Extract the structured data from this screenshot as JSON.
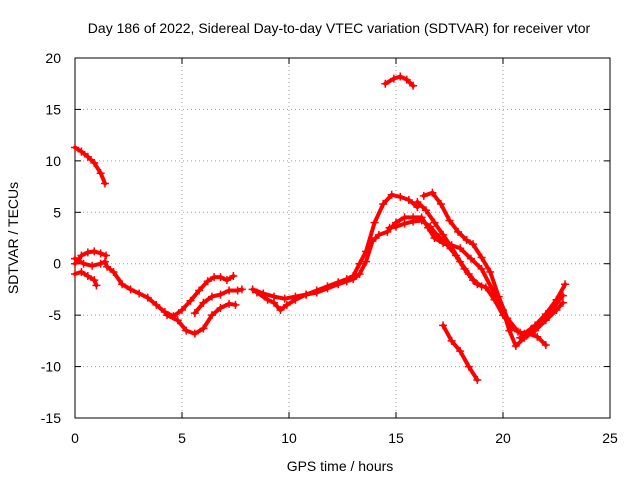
{
  "chart_data": {
    "type": "scatter",
    "title": "Day 186 of 2022, Sidereal Day-to-day VTEC variation (SDTVAR) for receiver vtor",
    "xlabel": "GPS time / hours",
    "ylabel": "SDTVAR / TECUs",
    "xlim": [
      0,
      25
    ],
    "ylim": [
      -15,
      20
    ],
    "xticks": [
      0,
      5,
      10,
      15,
      20,
      25
    ],
    "yticks": [
      -15,
      -10,
      -5,
      0,
      5,
      10,
      15,
      20
    ],
    "xtick_labels": [
      "0",
      "5",
      "10",
      "15",
      "20",
      "25"
    ],
    "ytick_labels": [
      "-15",
      "-10",
      "-5",
      "0",
      "5",
      "10",
      "15",
      "20"
    ],
    "grid": true,
    "marker": "+",
    "color": "#ff0000",
    "series": [
      {
        "name": "arc-a",
        "points": [
          [
            0,
            11.3
          ],
          [
            0.3,
            10.9
          ],
          [
            0.6,
            10.4
          ],
          [
            0.9,
            9.8
          ],
          [
            1.2,
            8.8
          ],
          [
            1.4,
            7.8
          ]
        ]
      },
      {
        "name": "arc-b",
        "points": [
          [
            0,
            0
          ],
          [
            0.3,
            0.8
          ],
          [
            0.6,
            1.1
          ],
          [
            0.9,
            1.2
          ],
          [
            1.2,
            1
          ],
          [
            1.45,
            0.8
          ]
        ]
      },
      {
        "name": "arc-c",
        "points": [
          [
            0,
            -1
          ],
          [
            0.3,
            -0.8
          ],
          [
            0.6,
            -1.2
          ],
          [
            0.9,
            -1.6
          ],
          [
            1.0,
            -2.1
          ]
        ]
      },
      {
        "name": "arc-d",
        "points": [
          [
            0,
            0.5
          ],
          [
            0.4,
            0
          ],
          [
            0.8,
            -0.2
          ],
          [
            1.2,
            0
          ],
          [
            1.4,
            0.2
          ],
          [
            1.5,
            -0.3
          ],
          [
            1.8,
            -0.8
          ],
          [
            2.2,
            -2
          ],
          [
            2.6,
            -2.5
          ],
          [
            3,
            -2.9
          ],
          [
            3.4,
            -3.3
          ],
          [
            3.8,
            -4
          ],
          [
            4.2,
            -4.7
          ],
          [
            4.6,
            -5.1
          ],
          [
            5.0,
            -4.5
          ],
          [
            5.4,
            -3.6
          ],
          [
            5.8,
            -2.6
          ],
          [
            6.2,
            -1.7
          ],
          [
            6.5,
            -1.3
          ],
          [
            6.8,
            -1.3
          ],
          [
            7.1,
            -1.6
          ],
          [
            7.4,
            -1.2
          ]
        ]
      },
      {
        "name": "arc-e",
        "points": [
          [
            4.3,
            -5
          ],
          [
            4.8,
            -5.5
          ],
          [
            5.2,
            -6.5
          ],
          [
            5.6,
            -6.8
          ],
          [
            6.0,
            -6.3
          ],
          [
            6.4,
            -5
          ],
          [
            6.8,
            -4.3
          ],
          [
            7.2,
            -3.9
          ],
          [
            7.5,
            -4
          ]
        ]
      },
      {
        "name": "arc-f",
        "points": [
          [
            5.6,
            -4.8
          ],
          [
            6.0,
            -3.8
          ],
          [
            6.4,
            -3.2
          ],
          [
            6.8,
            -3
          ],
          [
            7.2,
            -2.6
          ],
          [
            7.6,
            -2.6
          ],
          [
            7.8,
            -2.5
          ]
        ]
      },
      {
        "name": "arc-g",
        "points": [
          [
            8.5,
            -2.8
          ],
          [
            9.0,
            -3.5
          ],
          [
            9.3,
            -3.8
          ],
          [
            9.6,
            -4.5
          ],
          [
            9.9,
            -4
          ],
          [
            10.3,
            -3.5
          ],
          [
            10.8,
            -3
          ],
          [
            11.3,
            -2.6
          ],
          [
            11.8,
            -2.2
          ],
          [
            12.3,
            -1.8
          ],
          [
            12.7,
            -1.5
          ],
          [
            13.0,
            -1.2
          ],
          [
            13.3,
            0
          ],
          [
            13.6,
            1.2
          ],
          [
            14.0,
            4
          ],
          [
            14.4,
            5.8
          ],
          [
            14.8,
            6.7
          ],
          [
            15.2,
            6.5
          ],
          [
            15.6,
            6.2
          ],
          [
            16.0,
            5.5
          ]
        ]
      },
      {
        "name": "arc-h",
        "points": [
          [
            8.3,
            -2.5
          ],
          [
            8.8,
            -2.9
          ],
          [
            9.3,
            -3.2
          ],
          [
            9.8,
            -3.4
          ],
          [
            10.3,
            -3.2
          ],
          [
            10.8,
            -3
          ],
          [
            11.3,
            -2.8
          ],
          [
            11.8,
            -2.4
          ],
          [
            12.3,
            -2
          ],
          [
            12.7,
            -1.7
          ],
          [
            13.0,
            -1.5
          ],
          [
            13.3,
            -1
          ],
          [
            13.6,
            0.2
          ],
          [
            13.9,
            2.2
          ],
          [
            14.2,
            2.8
          ],
          [
            14.6,
            3.1
          ],
          [
            15.0,
            4
          ],
          [
            15.4,
            4.5
          ],
          [
            15.8,
            4.5
          ],
          [
            16.2,
            4.5
          ],
          [
            16.5,
            3.5
          ],
          [
            16.8,
            2.5
          ],
          [
            17.2,
            2
          ],
          [
            17.6,
            1.8
          ],
          [
            18.0,
            1.5
          ],
          [
            18.5,
            0.5
          ],
          [
            19.0,
            -0.5
          ],
          [
            19.5,
            -2.5
          ],
          [
            20.0,
            -4.5
          ],
          [
            20.3,
            -6.5
          ],
          [
            20.6,
            -8
          ],
          [
            21.0,
            -7.2
          ],
          [
            21.5,
            -6.5
          ],
          [
            22.0,
            -5.5
          ],
          [
            22.5,
            -4.5
          ],
          [
            22.8,
            -3.8
          ]
        ]
      },
      {
        "name": "arc-i",
        "points": [
          [
            14.7,
            3.5
          ],
          [
            15.0,
            3.6
          ],
          [
            15.4,
            3.9
          ],
          [
            15.8,
            4.1
          ],
          [
            16.2,
            4.2
          ],
          [
            16.6,
            3.6
          ],
          [
            17.0,
            2.6
          ],
          [
            17.4,
            1.8
          ],
          [
            17.8,
            0.8
          ],
          [
            18.2,
            -0.5
          ],
          [
            18.6,
            -1.6
          ],
          [
            19.0,
            -2.2
          ]
        ]
      },
      {
        "name": "arc-j",
        "points": [
          [
            16.3,
            6.6
          ],
          [
            16.7,
            6.9
          ],
          [
            17.1,
            5.8
          ],
          [
            17.5,
            4.2
          ],
          [
            17.9,
            3.1
          ],
          [
            18.3,
            2.3
          ],
          [
            18.6,
            1.9
          ],
          [
            19.0,
            0.6
          ],
          [
            19.4,
            -0.8
          ],
          [
            19.8,
            -3.2
          ],
          [
            20.2,
            -5.3
          ],
          [
            20.7,
            -6.6
          ],
          [
            21.1,
            -7
          ]
        ]
      },
      {
        "name": "arc-k",
        "points": [
          [
            16.0,
            6
          ],
          [
            16.4,
            5.2
          ],
          [
            16.8,
            4
          ],
          [
            17.2,
            2.8
          ],
          [
            17.6,
            1.6
          ],
          [
            18.0,
            0.2
          ],
          [
            18.4,
            -1
          ],
          [
            18.8,
            -2
          ],
          [
            19.2,
            -2.3
          ],
          [
            19.6,
            -3.5
          ],
          [
            20.0,
            -5
          ],
          [
            20.4,
            -6.2
          ],
          [
            20.8,
            -6.7
          ],
          [
            21.2,
            -6.8
          ],
          [
            21.6,
            -7.1
          ],
          [
            22.0,
            -7.9
          ]
        ]
      },
      {
        "name": "arc-l",
        "points": [
          [
            20.8,
            -7.2
          ],
          [
            21.3,
            -6.4
          ],
          [
            21.8,
            -5.5
          ],
          [
            22.3,
            -4.4
          ],
          [
            22.8,
            -3.1
          ]
        ]
      },
      {
        "name": "arc-m",
        "points": [
          [
            21.0,
            -6.8
          ],
          [
            21.5,
            -6
          ],
          [
            22.0,
            -4.9
          ],
          [
            22.5,
            -3.5
          ],
          [
            22.9,
            -2
          ]
        ]
      },
      {
        "name": "arc-n",
        "points": [
          [
            17.2,
            -6
          ],
          [
            17.6,
            -7.5
          ],
          [
            18.0,
            -8.5
          ],
          [
            18.4,
            -10
          ],
          [
            18.8,
            -11.3
          ]
        ]
      },
      {
        "name": "arc-o",
        "points": [
          [
            14.5,
            17.5
          ],
          [
            14.9,
            18
          ],
          [
            15.2,
            18.2
          ],
          [
            15.5,
            17.9
          ],
          [
            15.8,
            17.3
          ]
        ]
      }
    ]
  }
}
